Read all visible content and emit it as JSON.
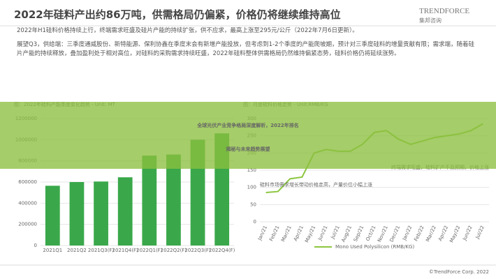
{
  "header": {
    "title": "2022年硅料产出约86万吨，供需格局仍偏紧，价格仍将继续维持高位",
    "logo": "TRENDFORCE",
    "logo_sub": "集邦咨询"
  },
  "bullets": [
    "2022年H1硅料价格持续上行，终端需求旺盛及硅片产能的持续扩张，供不应求，最高上涨至295元/公斤（2022年7月6日更新）。",
    "展望Q3，供给端：三季度通威股份、新特能源、保利协鑫在季度末会有新增产能投放，但考虑到1-2个季度的产能爬坡期，预计对三季度硅料的增量贡献有限；需求端，随着硅片产能的持续释放，叠加盈利处于相对高位，对硅料的采购需求持续旺盛，2022年硅料整体供需格局仍然维持偏紧态势，硅料价格仍将延续涨势。"
  ],
  "banner": [
    "全球光伏产业竞争格局深度解析，2022年排名",
    "揭秘与未来趋势展望"
  ],
  "footer": "©TrendForce Corp. 2022",
  "chart_data": [
    {
      "type": "bar",
      "title": "图：2022年硅料产能季度变化趋势 - Unit: MT",
      "categories": [
        "2021Q1",
        "2021Q2",
        "2021Q3(F)",
        "2021Q4(F)",
        "2022Q1(F)",
        "2022Q2(F)",
        "2022Q3(F)",
        "2022Q4(F)"
      ],
      "values": [
        565000,
        600000,
        605000,
        645000,
        850000,
        860000,
        1000000,
        1060000
      ],
      "color": "#3aa84a",
      "ylim": [
        0,
        1200000
      ],
      "yticks": [
        0,
        200000,
        400000,
        600000,
        800000,
        1000000,
        1200000
      ],
      "grid": true
    },
    {
      "type": "line",
      "title": "图：月度硅料价格走势 - Unit:RMB/KG",
      "categories": [
        "Jan/21",
        "Feb/21",
        "Mar/21",
        "Apr/21",
        "May/21",
        "Jun/21",
        "Jul/21",
        "Aug/21",
        "Sep/21",
        "Oct/21",
        "Nov/21",
        "Dec/21",
        "Jan/22",
        "Feb/22",
        "Mar/22",
        "Apr/22",
        "May/22",
        "Jun/22",
        "Jul/22"
      ],
      "series": [
        {
          "name": "Mono Used Polysilicon (RMB/KG)",
          "color": "#8cc63f",
          "values": [
            85,
            88,
            125,
            130,
            200,
            210,
            205,
            205,
            225,
            260,
            265,
            240,
            225,
            235,
            245,
            250,
            255,
            265,
            285
          ]
        }
      ],
      "ylim": [
        0,
        300
      ],
      "yticks": [
        0,
        50,
        100,
        150,
        200,
        250,
        300
      ],
      "grid": true,
      "annotations": [
        "硅料市场需求增长带动价格走高，产量价位小幅上涨",
        "终端需求旺盛，硅料扩产不及预期，价格上涨"
      ]
    }
  ]
}
